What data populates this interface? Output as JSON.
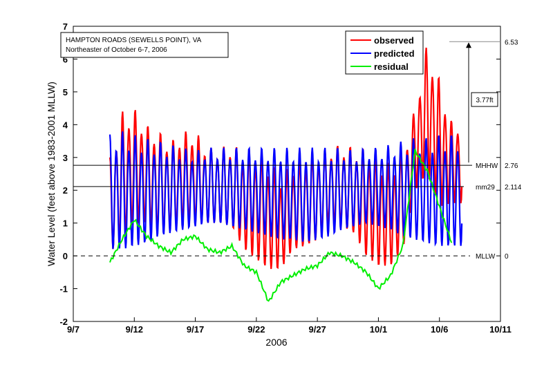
{
  "chart_data": {
    "type": "line",
    "title_box": [
      "HAMPTON ROADS (SEWELLS POINT), VA",
      "Northeaster of October 6-7, 2006"
    ],
    "xlabel": "2006",
    "ylabel": "Water Level (feet above 1983-2001 MLLW)",
    "xlim": [
      "2006-09-07",
      "2006-10-12"
    ],
    "ylim": [
      -2,
      7
    ],
    "xticks": [
      {
        "date": "2006-09-07",
        "label": "9/7"
      },
      {
        "date": "2006-09-12",
        "label": "9/12"
      },
      {
        "date": "2006-09-17",
        "label": "9/17"
      },
      {
        "date": "2006-09-22",
        "label": "9/22"
      },
      {
        "date": "2006-09-27",
        "label": "9/27"
      },
      {
        "date": "2006-10-02",
        "label": "10/1"
      },
      {
        "date": "2006-10-07",
        "label": "10/6"
      },
      {
        "date": "2006-10-12",
        "label": "10/11"
      }
    ],
    "yticks": [
      -2,
      -1,
      0,
      1,
      2,
      3,
      4,
      5,
      6,
      7
    ],
    "right_yticks": [
      0,
      1,
      2,
      3,
      4,
      5,
      6,
      7
    ],
    "grid": false,
    "legend_position": "top-right",
    "dates": [
      "2006-09-10",
      "2006-09-11",
      "2006-09-12",
      "2006-09-13",
      "2006-09-14",
      "2006-09-15",
      "2006-09-16",
      "2006-09-17",
      "2006-09-18",
      "2006-09-19",
      "2006-09-20",
      "2006-09-21",
      "2006-09-22",
      "2006-09-23",
      "2006-09-24",
      "2006-09-25",
      "2006-09-26",
      "2006-09-27",
      "2006-09-28",
      "2006-09-29",
      "2006-09-30",
      "2006-10-01",
      "2006-10-02",
      "2006-10-03",
      "2006-10-04",
      "2006-10-05",
      "2006-10-06",
      "2006-10-07",
      "2006-10-08"
    ],
    "series": [
      {
        "name": "observed",
        "color": "#ff0000",
        "daily_high": [
          3.0,
          4.4,
          4.5,
          4.0,
          3.8,
          3.5,
          3.8,
          3.8,
          3.3,
          3.3,
          3.4,
          3.2,
          3.2,
          2.9,
          2.5,
          2.8,
          3.0,
          3.1,
          3.3,
          3.4,
          3.3,
          3.3,
          3.0,
          2.8,
          3.2,
          4.5,
          6.53,
          5.4,
          4.1
        ],
        "daily_low": [
          0.1,
          0.5,
          1.0,
          1.0,
          0.7,
          0.8,
          1.0,
          1.0,
          1.0,
          1.0,
          0.9,
          0.2,
          -0.1,
          -0.4,
          -0.4,
          0.2,
          0.3,
          0.5,
          1.0,
          0.9,
          0.7,
          0.0,
          -0.3,
          -0.3,
          0.2,
          2.0,
          2.5,
          1.5,
          1.6
        ]
      },
      {
        "name": "predicted",
        "color": "#0000ff",
        "daily_high": [
          3.7,
          3.8,
          3.7,
          3.6,
          3.5,
          3.4,
          3.3,
          3.2,
          3.3,
          3.3,
          3.3,
          3.3,
          3.3,
          3.3,
          3.3,
          3.3,
          3.3,
          3.3,
          3.3,
          3.3,
          3.2,
          3.3,
          3.3,
          3.4,
          3.5,
          3.6,
          3.6,
          3.7,
          3.7
        ],
        "daily_low": [
          0.2,
          0.2,
          0.3,
          0.4,
          0.6,
          0.7,
          0.8,
          0.9,
          1.0,
          1.0,
          0.9,
          0.8,
          0.7,
          0.6,
          0.5,
          0.5,
          0.4,
          0.5,
          0.6,
          0.8,
          0.9,
          1.0,
          0.9,
          0.8,
          0.6,
          0.5,
          0.4,
          0.3,
          0.3
        ]
      },
      {
        "name": "residual",
        "color": "#00ee00",
        "values": [
          -0.2,
          0.5,
          1.1,
          0.6,
          0.3,
          0.1,
          0.5,
          0.6,
          0.2,
          0.1,
          0.3,
          -0.3,
          -0.5,
          -1.4,
          -0.8,
          -0.6,
          -0.4,
          -0.3,
          0.1,
          0.0,
          -0.2,
          -0.5,
          -1.0,
          -0.6,
          0.3,
          3.2,
          2.6,
          1.5,
          0.4
        ]
      }
    ],
    "reference_lines": [
      {
        "label": "MHHW",
        "value": 2.76,
        "value_label": "2.76",
        "style": "solid"
      },
      {
        "label": "mm29",
        "value": 2.114,
        "value_label": "2.114",
        "style": "solid"
      },
      {
        "label": "MLLW",
        "value": 0,
        "value_label": "0",
        "style": "dashed"
      }
    ],
    "peak": {
      "value": 6.53,
      "value_label": "6.53"
    },
    "surge_annotation": "3.77ft"
  }
}
